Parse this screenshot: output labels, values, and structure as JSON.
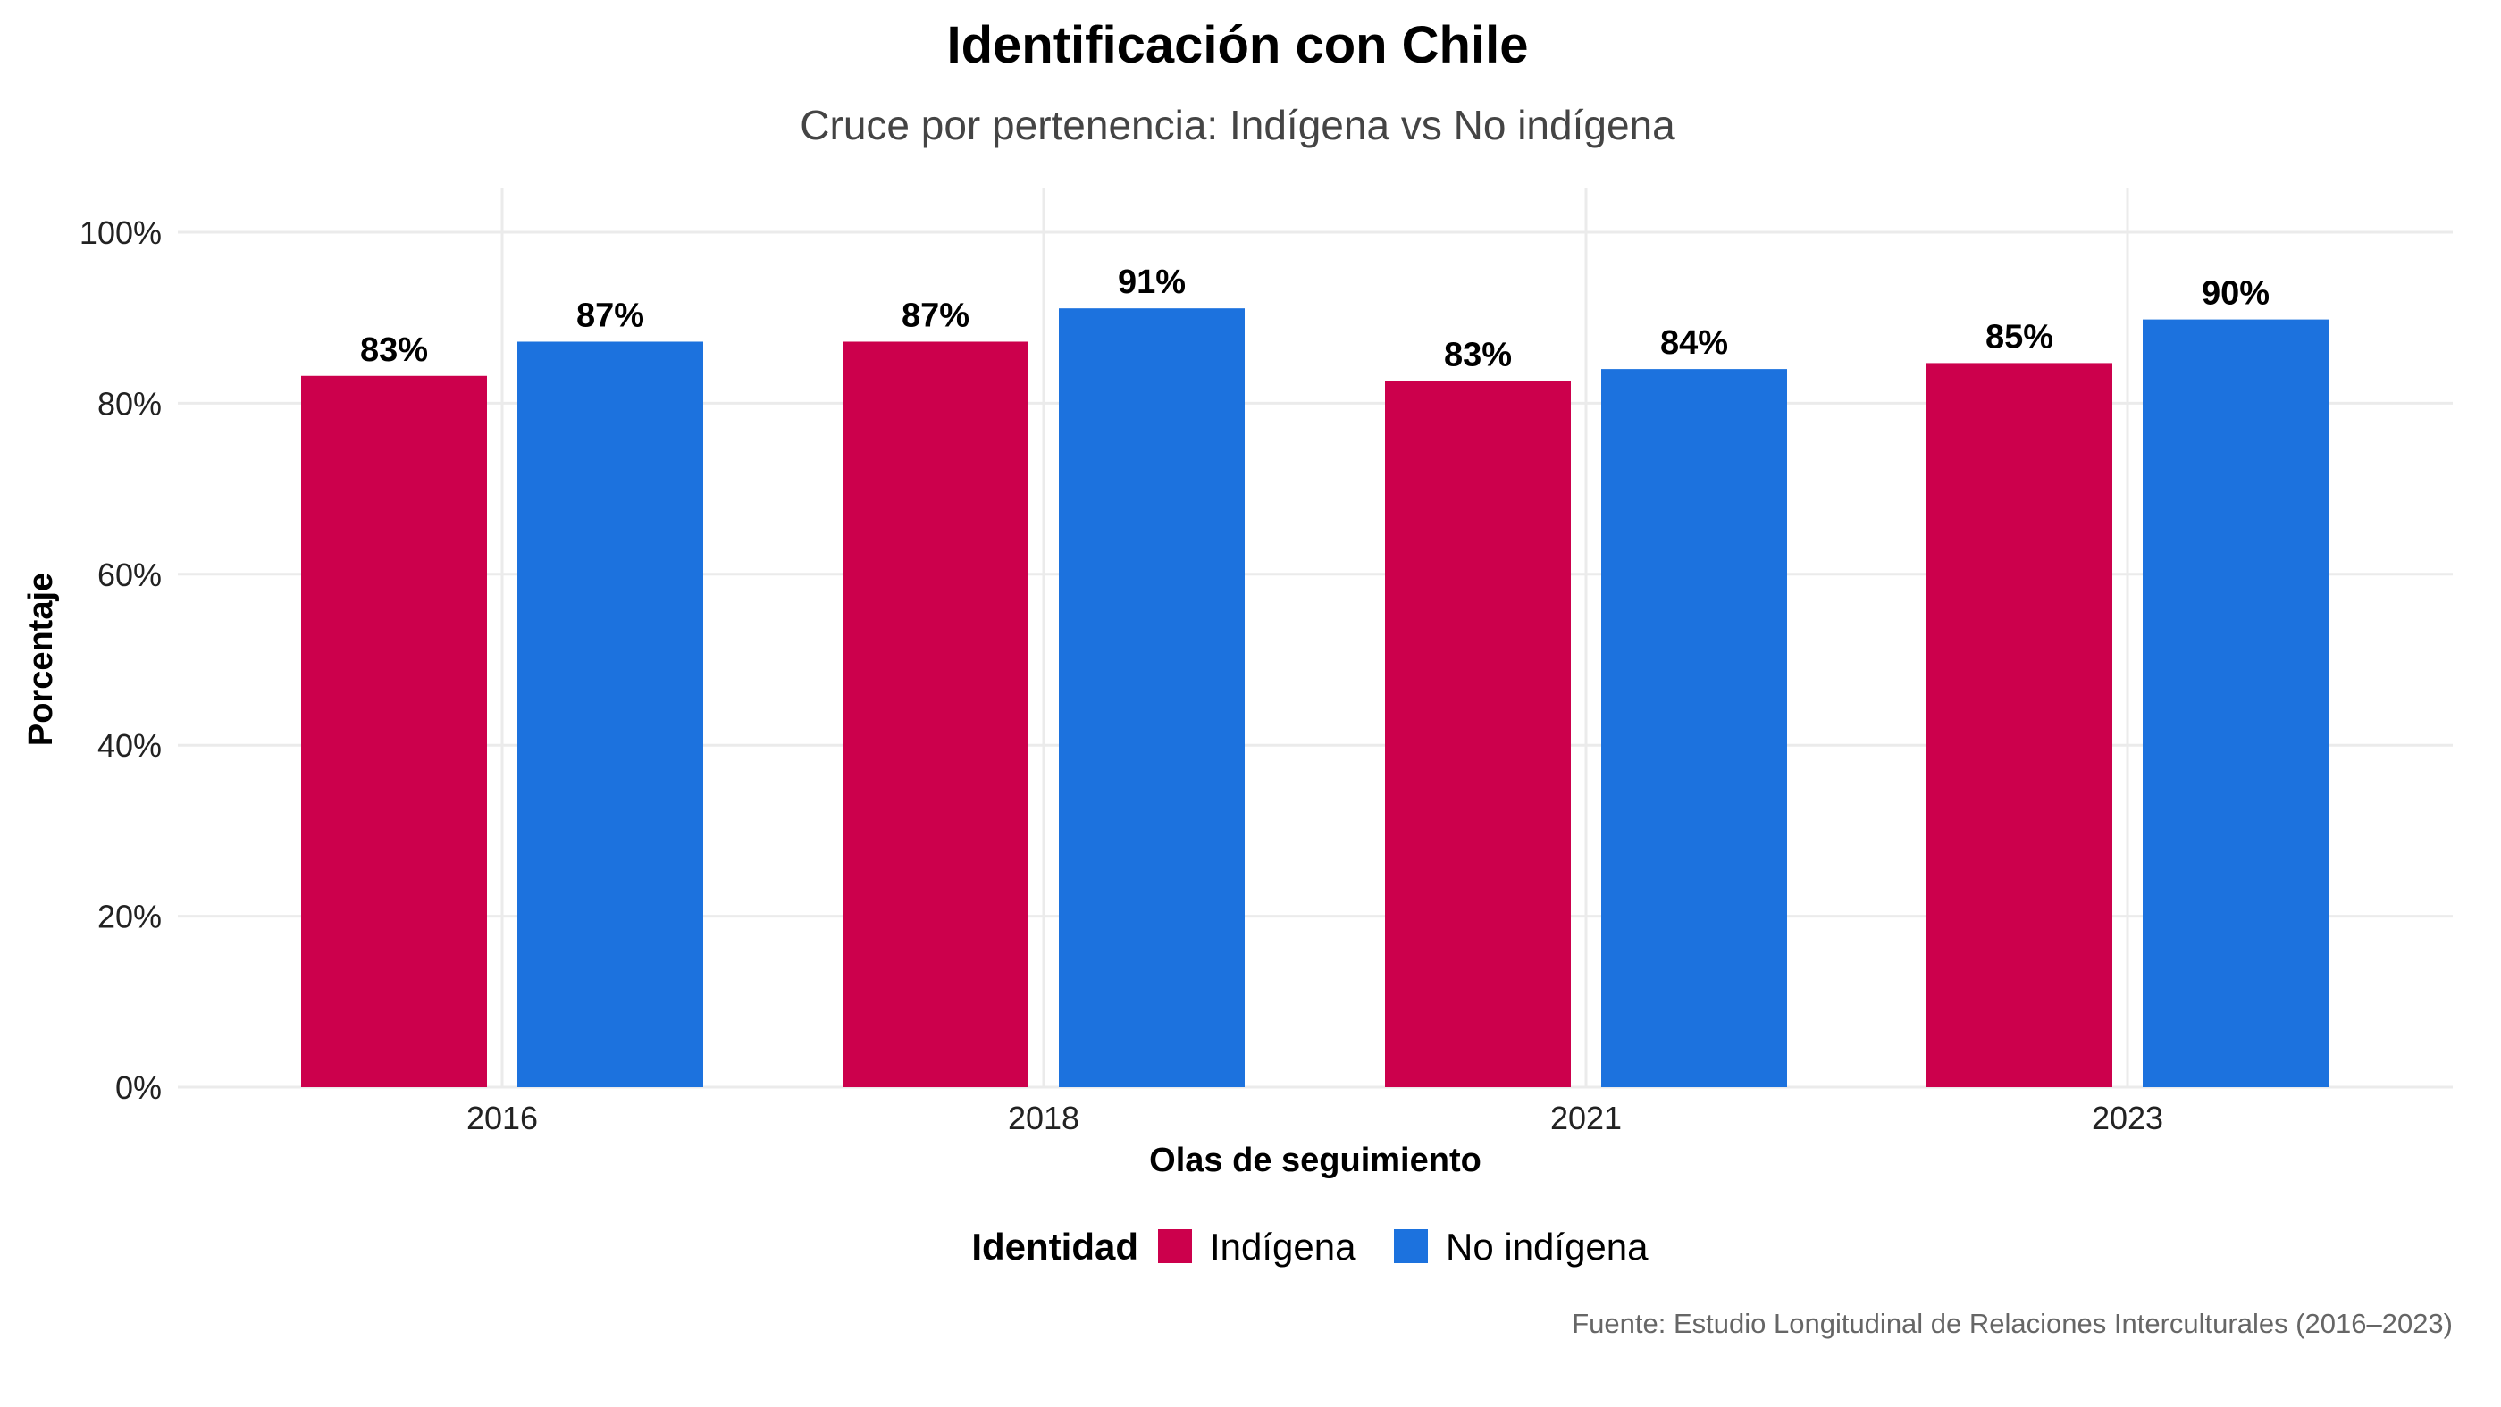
{
  "chart_data": {
    "type": "bar",
    "title": "Identificación con Chile",
    "subtitle": "Cruce por pertenencia: Indígena vs No indígena",
    "xlabel": "Olas de seguimiento",
    "ylabel": "Porcentaje",
    "categories": [
      "2016",
      "2018",
      "2021",
      "2023"
    ],
    "ylim": [
      0,
      100
    ],
    "yticks": [
      0,
      20,
      40,
      60,
      80,
      100
    ],
    "ytick_labels": [
      "0%",
      "20%",
      "40%",
      "60%",
      "80%",
      "100%"
    ],
    "grid": true,
    "legend": {
      "title": "Identidad",
      "placement": "bottom"
    },
    "series": [
      {
        "name": "Indígena",
        "color": "#CC004C",
        "values": [
          83.2,
          87.2,
          82.6,
          84.7
        ],
        "labels": [
          "83%",
          "87%",
          "83%",
          "85%"
        ]
      },
      {
        "name": "No indígena",
        "color": "#1C72DE",
        "values": [
          87.2,
          91.1,
          84.0,
          89.8
        ],
        "labels": [
          "87%",
          "91%",
          "84%",
          "90%"
        ]
      }
    ],
    "caption": "Fuente: Estudio Longitudinal de Relaciones Interculturales (2016–2023)"
  }
}
